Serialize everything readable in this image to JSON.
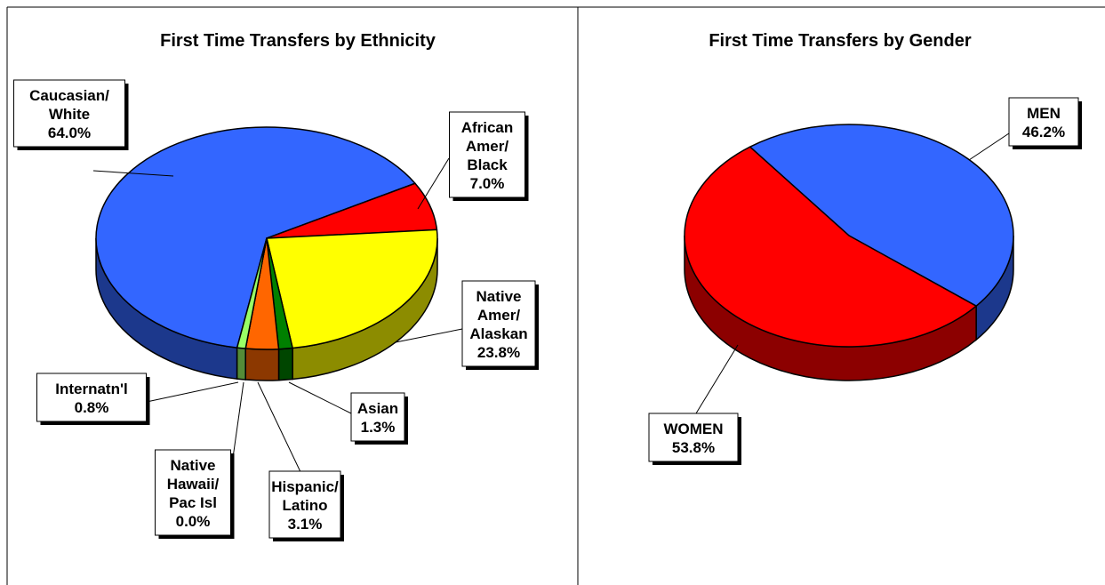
{
  "chart_data": [
    {
      "type": "pie3d",
      "title": "First Time Transfers by Ethnicity",
      "categories": [
        "Caucasian/\nWhite",
        "African\nAmer/\nBlack",
        "Native\nAmer/\nAlaskan",
        "Asian",
        "Hispanic/\nLatino",
        "Native\nHawaii/\nPac Isl",
        "Internatn'l"
      ],
      "values": [
        64.0,
        7.0,
        23.8,
        1.3,
        3.1,
        0.0,
        0.8
      ],
      "value_labels": [
        "64.0%",
        "7.0%",
        "23.8%",
        "1.3%",
        "3.1%",
        "0.0%",
        "0.8%"
      ],
      "colors": [
        "#3366ff",
        "#ff0000",
        "#ffff00",
        "#008000",
        "#ff6600",
        "#993300",
        "#99ff66"
      ]
    },
    {
      "type": "pie3d",
      "title": "First Time Transfers by Gender",
      "categories": [
        "MEN",
        "WOMEN"
      ],
      "values": [
        46.2,
        53.8
      ],
      "value_labels": [
        "46.2%",
        "53.8%"
      ],
      "colors": [
        "#3366ff",
        "#ff0000"
      ]
    }
  ]
}
